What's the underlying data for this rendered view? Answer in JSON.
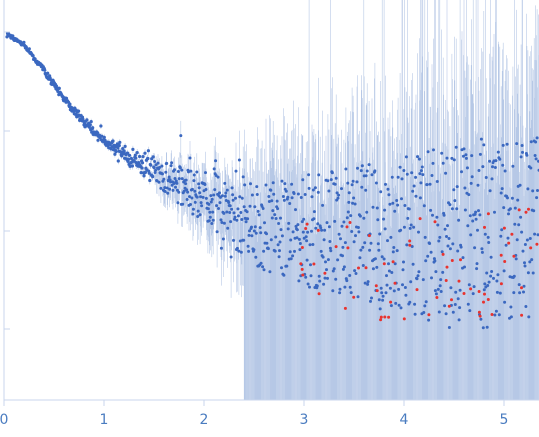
{
  "chart_data": {
    "type": "scatter",
    "title": "",
    "xlabel": "",
    "ylabel": "",
    "xlim": [
      0,
      5.35
    ],
    "y_scale": "log",
    "grid": false,
    "legend": "none",
    "x_ticks": [
      "0",
      "1",
      "2",
      "3",
      "4",
      "5"
    ],
    "x_tick_values": [
      0,
      1,
      2,
      3,
      4,
      5
    ],
    "colors": {
      "points": "#3b68c0",
      "outlier_points": "#e8332f",
      "error_bars": "#b7c8e6",
      "axis": "#c9d6ec",
      "tick_label": "#4a7cc0"
    },
    "profile_shape": {
      "description_note": "",
      "q_knots": [
        0.0,
        0.2,
        0.4,
        0.6,
        0.8,
        1.0,
        1.2,
        1.4,
        1.6,
        1.8,
        2.0,
        2.2,
        2.5,
        3.0,
        3.5,
        4.0,
        4.5,
        5.0,
        5.35
      ],
      "relative_log_intensity": [
        1.0,
        0.96,
        0.88,
        0.79,
        0.72,
        0.66,
        0.62,
        0.58,
        0.55,
        0.51,
        0.49,
        0.46,
        0.4,
        0.38,
        0.37,
        0.36,
        0.36,
        0.38,
        0.4
      ]
    },
    "series": [
      {
        "name": "",
        "kind": "experimental",
        "point_count": 1100
      },
      {
        "name": "",
        "kind": "outliers",
        "point_count": 70
      }
    ]
  }
}
